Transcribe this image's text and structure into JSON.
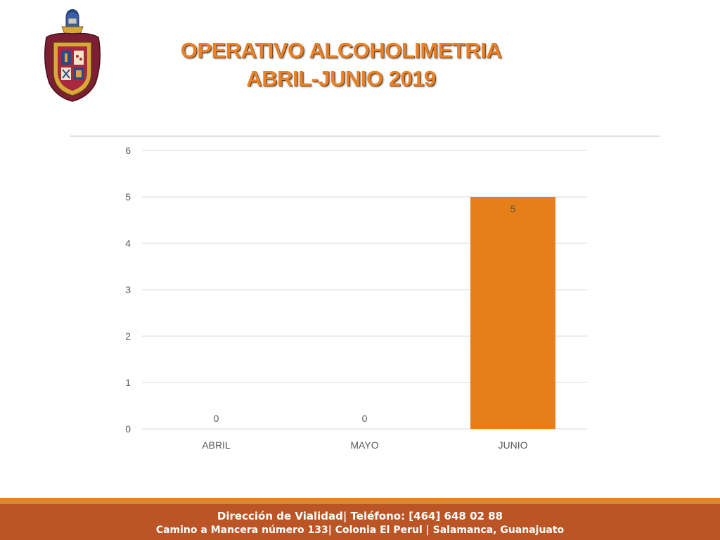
{
  "header": {
    "title_line1": "OPERATIVO ALCOHOLIMETRIA",
    "title_line2": "ABRIL-JUNIO 2019",
    "logo_icon": "coat-of-arms-icon"
  },
  "chart_data": {
    "type": "bar",
    "categories": [
      "ABRIL",
      "MAYO",
      "JUNIO"
    ],
    "values": [
      0,
      0,
      5
    ],
    "data_labels": [
      "0",
      "0",
      "5"
    ],
    "y_ticks": [
      "0",
      "1",
      "2",
      "3",
      "4",
      "5",
      "6"
    ],
    "ylim": [
      0,
      6
    ],
    "grid": true,
    "bar_color": "#e67f17",
    "title": "",
    "xlabel": "",
    "ylabel": ""
  },
  "footer": {
    "line1": "Dirección de Vialidad| Teléfono: [464] 648 02 88",
    "line2": "Camino a Mancera número 133| Colonia El Perul | Salamanca, Guanajuato",
    "stripe_color": "#e8831f",
    "background_color": "#bc5526"
  }
}
